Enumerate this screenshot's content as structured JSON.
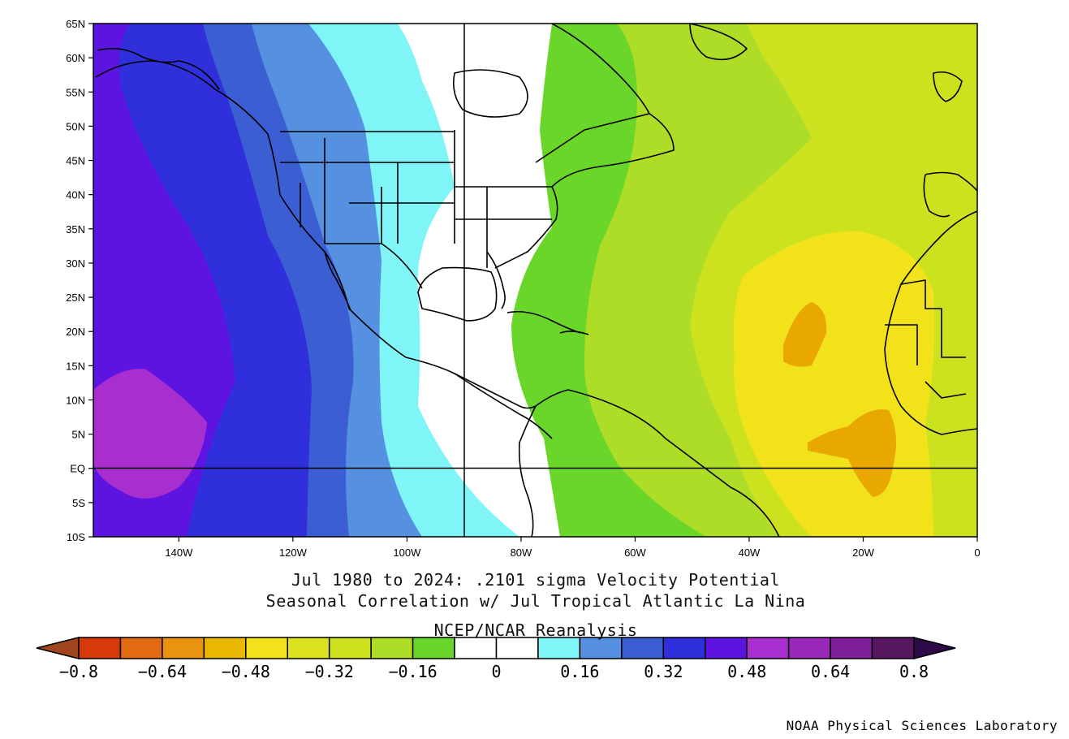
{
  "map": {
    "lat_ticks": [
      "65N",
      "60N",
      "55N",
      "50N",
      "45N",
      "40N",
      "35N",
      "30N",
      "25N",
      "20N",
      "15N",
      "10N",
      "5N",
      "EQ",
      "5S",
      "10S"
    ],
    "lon_ticks": [
      "140W",
      "120W",
      "100W",
      "80W",
      "60W",
      "40W",
      "20W",
      "0"
    ],
    "extent": {
      "lon": [
        -155,
        0
      ],
      "lat": [
        -10,
        65
      ]
    },
    "reference_lines": {
      "lat": 0,
      "lon": -90
    },
    "line_color": "#000000",
    "fill_colors": {
      "strong_negative": "#e8a800",
      "moderate_negative": "#f2e21a",
      "weak_negative_2": "#cde21e",
      "weak_negative_1": "#aedd28",
      "near_zero_negative": "#6bd62a",
      "neutral": "#ffffff",
      "weak_positive": "#7ff5f8",
      "moderate_positive_1": "#5591e0",
      "moderate_positive_2": "#3c5ed3",
      "strong_positive_1": "#2f2fdb",
      "strong_positive_2": "#5e14e0",
      "very_strong_positive": "#a82ed0"
    }
  },
  "title": {
    "line1": "Jul 1980 to 2024: .2101 sigma Velocity Potential",
    "line2": "Seasonal Correlation w/ Jul Tropical Atlantic La Nina",
    "line3": "NCEP/NCAR Reanalysis"
  },
  "colorbar": {
    "labels": [
      "−0.8",
      "−0.64",
      "−0.48",
      "−0.32",
      "−0.16",
      "0",
      "0.16",
      "0.32",
      "0.48",
      "0.64",
      "0.8"
    ],
    "colors": [
      "#d63a0a",
      "#e26a10",
      "#e89412",
      "#e8b800",
      "#f2e21a",
      "#dde21e",
      "#cde21e",
      "#aedd28",
      "#6bd62a",
      "#ffffff",
      "#ffffff",
      "#7ff5f8",
      "#5591e0",
      "#3c5ed3",
      "#2f2fdb",
      "#5e14e0",
      "#a82ed0",
      "#9a28b8",
      "#7d1f99",
      "#561660"
    ],
    "under_color": "#a0451e",
    "over_color": "#2e0a4a"
  },
  "credit": "NOAA Physical Sciences Laboratory"
}
